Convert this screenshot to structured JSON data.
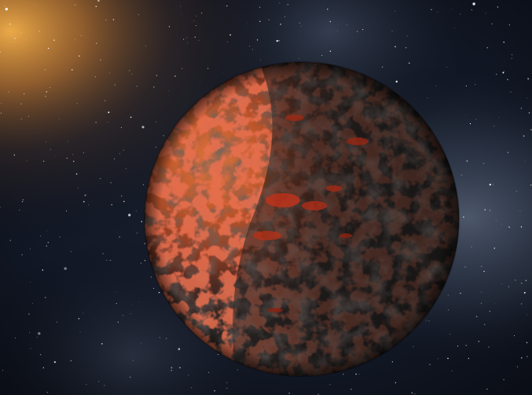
{
  "scene": {
    "colors": {
      "space_dark": "#0b0f18",
      "space_mid": "#1c2433",
      "nebula_blue": "#5d6b80",
      "sun_glow": "#f4a23a",
      "lava_red": "#c8391d",
      "rock_orange": "#b5562a",
      "rock_dark": "#2a2624",
      "strip_purple": "#3a1030"
    },
    "elements": {
      "planet": "planet",
      "star_glow": "star-glow",
      "starfield": "starfield",
      "nebula": "nebula"
    }
  }
}
